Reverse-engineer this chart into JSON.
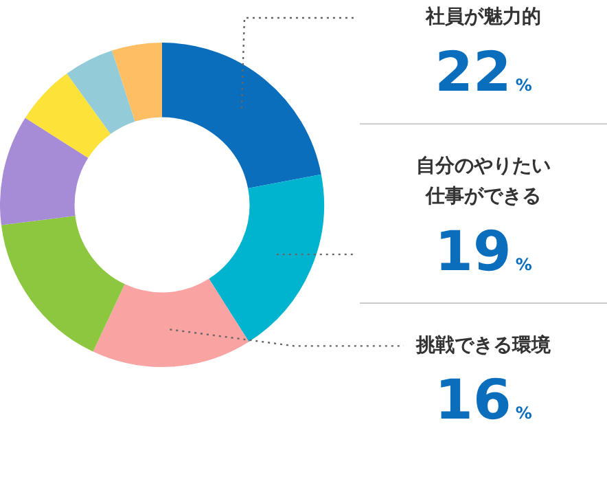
{
  "chart_data": {
    "type": "donut",
    "categories": [
      "社員が魅力的",
      "自分のやりたい仕事ができる",
      "挑戦できる環境",
      null,
      null,
      null,
      null,
      null
    ],
    "values": [
      22,
      19,
      16,
      16,
      11,
      6,
      5,
      5
    ],
    "colors": [
      "#0a6ebd",
      "#00b4d0",
      "#f9a3a3",
      "#8dc63f",
      "#a68bd6",
      "#fde23a",
      "#93cbd8",
      "#fdbe64"
    ],
    "value_labels": [
      "22%",
      "19%",
      "16%",
      null,
      null,
      null,
      null,
      null
    ],
    "legend": false
  }
}
